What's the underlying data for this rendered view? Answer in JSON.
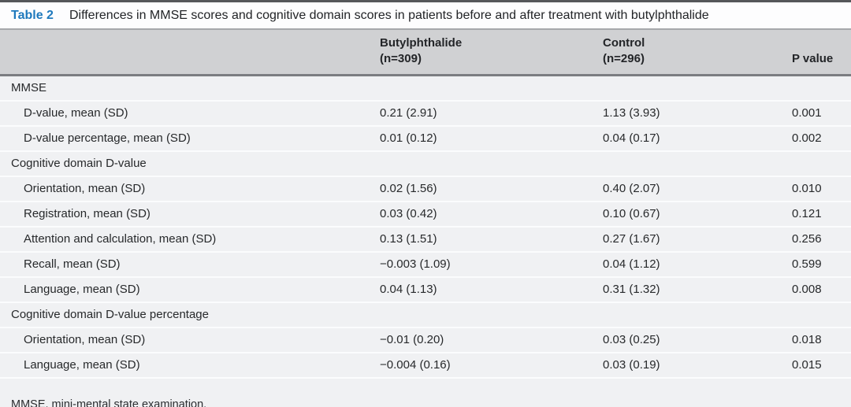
{
  "table": {
    "label": "Table 2",
    "title": "Differences in MMSE scores and cognitive domain scores in patients before and after treatment with butylphthalide",
    "header": {
      "col1": "",
      "col2_line1": "Butylphthalide",
      "col2_line2": "(n=309)",
      "col3_line1": "Control",
      "col3_line2": "(n=296)",
      "col4": "P value"
    },
    "rows": [
      {
        "type": "section",
        "label": "MMSE"
      },
      {
        "type": "data",
        "label": "D-value, mean (SD)",
        "butylphthalide": "0.21 (2.91)",
        "control": "1.13 (3.93)",
        "p": "0.001"
      },
      {
        "type": "data",
        "label": "D-value percentage, mean (SD)",
        "butylphthalide": "0.01 (0.12)",
        "control": "0.04 (0.17)",
        "p": "0.002"
      },
      {
        "type": "section",
        "label": "Cognitive domain D-value"
      },
      {
        "type": "data",
        "label": "Orientation, mean (SD)",
        "butylphthalide": "0.02 (1.56)",
        "control": "0.40 (2.07)",
        "p": "0.010"
      },
      {
        "type": "data",
        "label": "Registration, mean (SD)",
        "butylphthalide": "0.03 (0.42)",
        "control": "0.10 (0.67)",
        "p": "0.121"
      },
      {
        "type": "data",
        "label": "Attention and calculation, mean (SD)",
        "butylphthalide": "0.13 (1.51)",
        "control": "0.27 (1.67)",
        "p": "0.256"
      },
      {
        "type": "data",
        "label": "Recall, mean (SD)",
        "butylphthalide": "−0.003 (1.09)",
        "control": "0.04 (1.12)",
        "p": "0.599"
      },
      {
        "type": "data",
        "label": "Language, mean (SD)",
        "butylphthalide": "0.04 (1.13)",
        "control": "0.31 (1.32)",
        "p": "0.008"
      },
      {
        "type": "section",
        "label": "Cognitive domain D-value percentage"
      },
      {
        "type": "data",
        "label": "Orientation, mean (SD)",
        "butylphthalide": "−0.01 (0.20)",
        "control": "0.03 (0.25)",
        "p": "0.018"
      },
      {
        "type": "data",
        "label": "Language, mean (SD)",
        "butylphthalide": "−0.004 (0.16)",
        "control": "0.03 (0.19)",
        "p": "0.015"
      }
    ],
    "footnote": "MMSE, mini-mental state examination."
  },
  "colors": {
    "accent_blue": "#1e79bd",
    "header_band": "#d0d1d3",
    "body_band": "#f0f1f3",
    "top_rule": "#55575a",
    "header_rule": "#7b7d81",
    "title_rule": "#a6a8ab",
    "bottom_rule": "#cfd0d2",
    "text": "#27292b"
  }
}
